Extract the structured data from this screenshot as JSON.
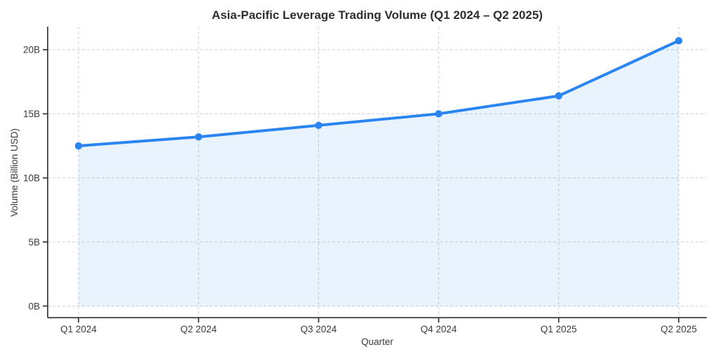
{
  "page": {
    "background": "#ffffff"
  },
  "chart_data": {
    "type": "line",
    "title": "Asia-Pacific Leverage Trading Volume (Q1 2024 – Q2 2025)",
    "xlabel": "Quarter",
    "ylabel": "Volume (Billion USD)",
    "categories": [
      "Q1 2024",
      "Q2 2024",
      "Q3 2024",
      "Q4 2024",
      "Q1 2025",
      "Q2 2025"
    ],
    "values": [
      12.5,
      13.2,
      14.1,
      15.0,
      16.4,
      20.7
    ],
    "unit": "Billion USD",
    "ytick_values": [
      0,
      5,
      10,
      15,
      20
    ],
    "ytick_labels": [
      "0B",
      "5B",
      "10B",
      "15B",
      "20B"
    ],
    "ylim": [
      -0.9,
      21.8
    ],
    "grid": "dashed-both-axes",
    "legend": "none",
    "marker": "circle",
    "area_fill": true,
    "colors": {
      "line": "#2b85f0",
      "marker": "#2b85f0",
      "area": "rgba(43,133,240,0.10)",
      "grid": "#d6dade",
      "axis": "#3f3f3f",
      "tick_text": "#3a3a3a",
      "title_text": "#2e2e2e"
    }
  }
}
